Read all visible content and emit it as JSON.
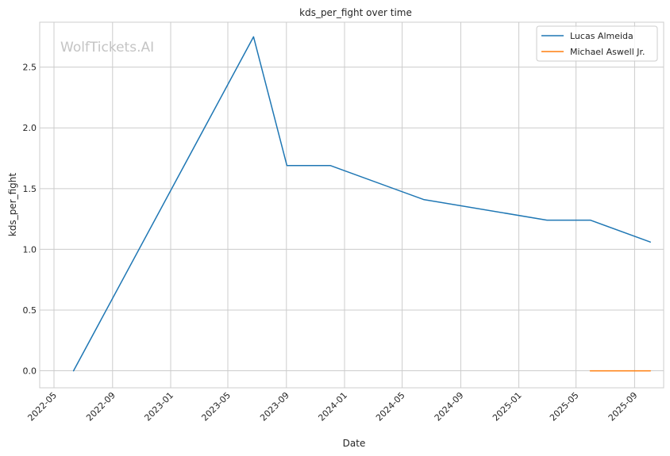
{
  "chart_data": {
    "type": "line",
    "title": "kds_per_fight over time",
    "xlabel": "Date",
    "ylabel": "kds_per_fight",
    "watermark": "WolfTickets.AI",
    "x_ticks": [
      "2022-05",
      "2022-09",
      "2023-01",
      "2023-05",
      "2023-09",
      "2024-01",
      "2024-05",
      "2024-09",
      "2025-01",
      "2025-05",
      "2025-09"
    ],
    "y_ticks": [
      "0.0",
      "0.5",
      "1.0",
      "1.5",
      "2.0",
      "2.5"
    ],
    "xlim": [
      "2022-04-01",
      "2025-11-01"
    ],
    "ylim": [
      -0.14,
      2.87
    ],
    "grid": true,
    "legend_position": "top-right",
    "series": [
      {
        "name": "Lucas Almeida",
        "color": "#1f77b4",
        "points": [
          {
            "x": "2022-06-11",
            "y": 0.0
          },
          {
            "x": "2023-06-24",
            "y": 2.75
          },
          {
            "x": "2023-09-02",
            "y": 1.69
          },
          {
            "x": "2023-12-02",
            "y": 1.69
          },
          {
            "x": "2024-06-15",
            "y": 1.41
          },
          {
            "x": "2025-03-01",
            "y": 1.24
          },
          {
            "x": "2025-05-31",
            "y": 1.24
          },
          {
            "x": "2025-10-04",
            "y": 1.06
          }
        ]
      },
      {
        "name": "Michael Aswell Jr.",
        "color": "#ff7f0e",
        "points": [
          {
            "x": "2025-05-31",
            "y": 0.0
          },
          {
            "x": "2025-10-04",
            "y": 0.0
          }
        ]
      }
    ]
  }
}
